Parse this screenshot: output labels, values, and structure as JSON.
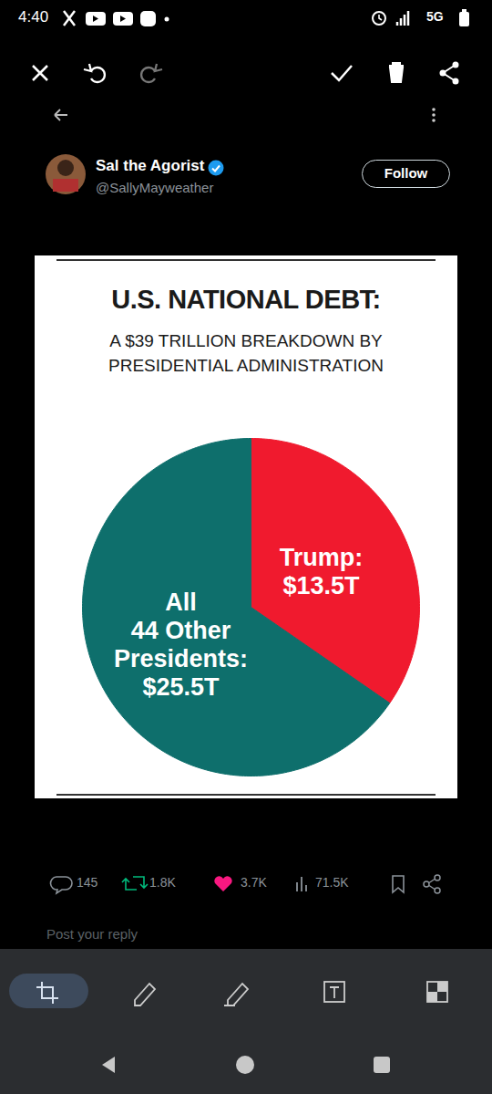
{
  "status_bar": {
    "time": "4:40",
    "network": "5G"
  },
  "post": {
    "name": "Sal the Agorist",
    "handle": "@SallyMayweather",
    "button": "Follow",
    "replies": "145",
    "reposts": "1.8K",
    "likes": "3.7K",
    "views": "71.5K",
    "reply_prompt": "Post your reply"
  },
  "chart_data": {
    "type": "pie",
    "title": "U.S. NATIONAL DEBT:",
    "subtitle": "A $39 TRILLION BREAKDOWN BY PRESIDENTIAL ADMINISTRATION",
    "categories": [
      "Trump:",
      "All\n44 Other\nPresidents:"
    ],
    "values": [
      13.5,
      25.5
    ],
    "value_labels": [
      "$13.5T",
      "$25.5T"
    ],
    "colors": [
      "#f01a2e",
      "#0e6f6c"
    ],
    "data_labels": true,
    "tick_labels": false
  }
}
